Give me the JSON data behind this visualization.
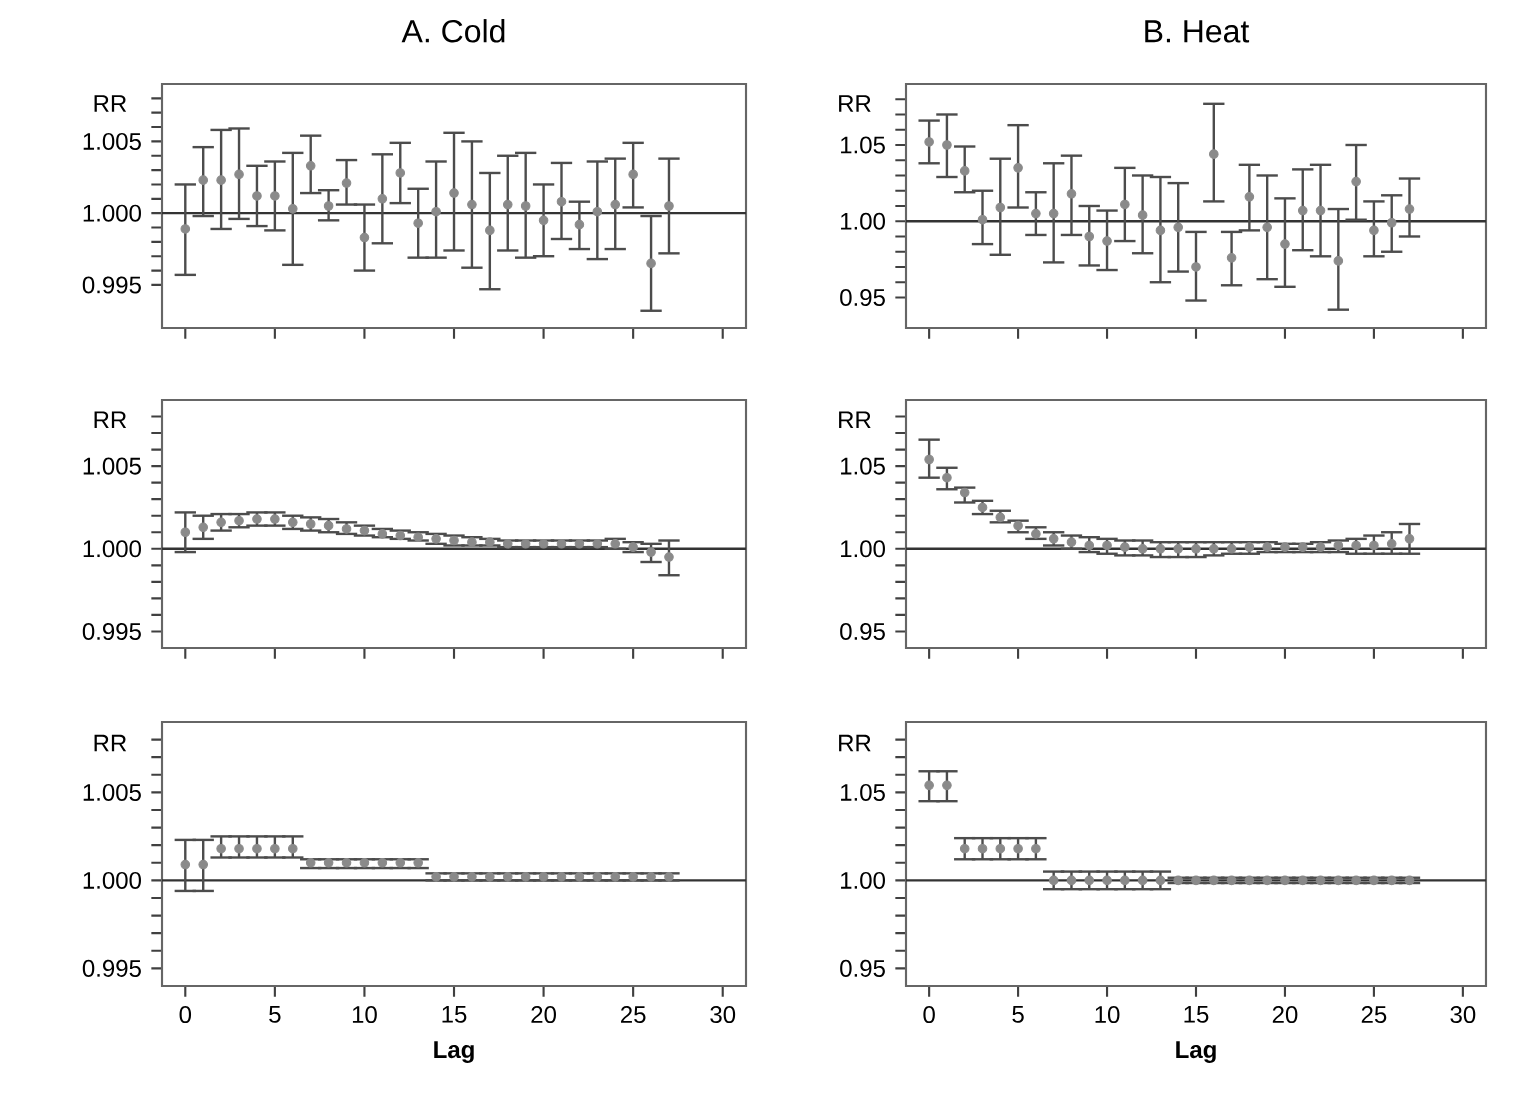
{
  "chart_data": [
    {
      "type": "scatter",
      "title": "A. Cold",
      "ylabel": "RR",
      "color": "#8a8a8a",
      "tick_labels": "y",
      "xlim": [
        -1.3,
        31.3
      ],
      "xticks": [
        0,
        5,
        10,
        15,
        20,
        25,
        30
      ],
      "ylim": [
        0.992,
        1.009
      ],
      "yticks": [
        0.995,
        {
          "value": 0.996,
          "label": null
        },
        {
          "value": 0.997,
          "label": null
        },
        {
          "value": 0.998,
          "label": null
        },
        {
          "value": 0.999,
          "label": null
        },
        {
          "value": 1.0,
          "label": "1.000"
        },
        {
          "value": 1.001,
          "label": null
        },
        {
          "value": 1.002,
          "label": null
        },
        {
          "value": 1.003,
          "label": null
        },
        {
          "value": 1.004,
          "label": null
        },
        1.005,
        {
          "value": 1.006,
          "label": null
        },
        {
          "value": 1.007,
          "label": null
        },
        {
          "value": 1.008,
          "label": null
        }
      ],
      "ref_lines": [
        {
          "axis": "y",
          "value": 1.0
        }
      ],
      "x": [
        0,
        1,
        2,
        3,
        4,
        5,
        6,
        7,
        8,
        9,
        10,
        11,
        12,
        13,
        14,
        15,
        16,
        17,
        18,
        19,
        20,
        21,
        22,
        23,
        24,
        25,
        26,
        27
      ],
      "values": [
        0.9989,
        1.0023,
        1.0023,
        1.0027,
        1.0012,
        1.0012,
        1.0003,
        1.0033,
        1.0005,
        1.0021,
        0.9983,
        1.001,
        1.0028,
        0.9993,
        1.0001,
        1.0014,
        1.0006,
        0.9988,
        1.0006,
        1.0005,
        0.9995,
        1.0008,
        0.9992,
        1.0001,
        1.0006,
        1.0027,
        0.9965,
        1.0005
      ],
      "errors": [
        [
          0.9957,
          1.002
        ],
        [
          0.9998,
          1.0046
        ],
        [
          0.9989,
          1.0058
        ],
        [
          0.9996,
          1.0059
        ],
        [
          0.9991,
          1.0033
        ],
        [
          0.9988,
          1.0036
        ],
        [
          0.9964,
          1.0042
        ],
        [
          1.0014,
          1.0054
        ],
        [
          0.9995,
          1.0016
        ],
        [
          1.0006,
          1.0037
        ],
        [
          0.996,
          1.0006
        ],
        [
          0.9979,
          1.0041
        ],
        [
          1.0007,
          1.0049
        ],
        [
          0.9969,
          1.0017
        ],
        [
          0.9969,
          1.0036
        ],
        [
          0.9974,
          1.0056
        ],
        [
          0.9962,
          1.005
        ],
        [
          0.9947,
          1.0028
        ],
        [
          0.9974,
          1.004
        ],
        [
          0.9969,
          1.0042
        ],
        [
          0.997,
          1.002
        ],
        [
          0.9982,
          1.0035
        ],
        [
          0.9975,
          1.0008
        ],
        [
          0.9968,
          1.0036
        ],
        [
          0.9975,
          1.0038
        ],
        [
          1.0004,
          1.0049
        ],
        [
          0.9932,
          0.9998
        ],
        [
          0.9972,
          1.0038
        ]
      ]
    },
    {
      "type": "scatter",
      "title": "B. Heat",
      "ylabel": "RR",
      "color": "#8a8a8a",
      "tick_labels": "y",
      "xlim": [
        -1.3,
        31.3
      ],
      "xticks": [
        0,
        5,
        10,
        15,
        20,
        25,
        30
      ],
      "ylim": [
        0.93,
        1.09
      ],
      "yticks": [
        0.95,
        {
          "value": 0.96,
          "label": null
        },
        {
          "value": 0.97,
          "label": null
        },
        {
          "value": 0.98,
          "label": null
        },
        {
          "value": 0.99,
          "label": null
        },
        {
          "value": 1.0,
          "label": "1.00"
        },
        {
          "value": 1.01,
          "label": null
        },
        {
          "value": 1.02,
          "label": null
        },
        {
          "value": 1.03,
          "label": null
        },
        {
          "value": 1.04,
          "label": null
        },
        1.05,
        {
          "value": 1.06,
          "label": null
        },
        {
          "value": 1.07,
          "label": null
        },
        {
          "value": 1.08,
          "label": null
        }
      ],
      "ref_lines": [
        {
          "axis": "y",
          "value": 1.0
        }
      ],
      "x": [
        0,
        1,
        2,
        3,
        4,
        5,
        6,
        7,
        8,
        9,
        10,
        11,
        12,
        13,
        14,
        15,
        16,
        17,
        18,
        19,
        20,
        21,
        22,
        23,
        24,
        25,
        26,
        27
      ],
      "values": [
        1.052,
        1.05,
        1.033,
        1.001,
        1.009,
        1.035,
        1.005,
        1.005,
        1.018,
        0.99,
        0.987,
        1.011,
        1.004,
        0.994,
        0.996,
        0.97,
        1.044,
        0.976,
        1.016,
        0.996,
        0.985,
        1.007,
        1.007,
        0.974,
        1.026,
        0.994,
        0.999,
        1.008
      ],
      "errors": [
        [
          1.038,
          1.066
        ],
        [
          1.029,
          1.07
        ],
        [
          1.019,
          1.049
        ],
        [
          0.985,
          1.02
        ],
        [
          0.978,
          1.041
        ],
        [
          1.009,
          1.063
        ],
        [
          0.991,
          1.019
        ],
        [
          0.973,
          1.038
        ],
        [
          0.991,
          1.043
        ],
        [
          0.971,
          1.01
        ],
        [
          0.968,
          1.007
        ],
        [
          0.987,
          1.035
        ],
        [
          0.979,
          1.03
        ],
        [
          0.96,
          1.029
        ],
        [
          0.967,
          1.025
        ],
        [
          0.948,
          0.993
        ],
        [
          1.013,
          1.077
        ],
        [
          0.958,
          0.993
        ],
        [
          0.994,
          1.037
        ],
        [
          0.962,
          1.03
        ],
        [
          0.957,
          1.015
        ],
        [
          0.981,
          1.034
        ],
        [
          0.977,
          1.037
        ],
        [
          0.942,
          1.008
        ],
        [
          1.001,
          1.05
        ],
        [
          0.977,
          1.013
        ],
        [
          0.98,
          1.017
        ],
        [
          0.99,
          1.028
        ]
      ]
    },
    {
      "type": "scatter",
      "ylabel": "RR",
      "color": "#8a8a8a",
      "tick_labels": "y",
      "xlim": [
        -1.3,
        31.3
      ],
      "xticks": [
        0,
        5,
        10,
        15,
        20,
        25,
        30
      ],
      "ylim": [
        0.994,
        1.009
      ],
      "yticks": [
        0.995,
        {
          "value": 0.996,
          "label": null
        },
        {
          "value": 0.997,
          "label": null
        },
        {
          "value": 0.998,
          "label": null
        },
        {
          "value": 0.999,
          "label": null
        },
        {
          "value": 1.0,
          "label": "1.000"
        },
        {
          "value": 1.001,
          "label": null
        },
        {
          "value": 1.002,
          "label": null
        },
        {
          "value": 1.003,
          "label": null
        },
        {
          "value": 1.004,
          "label": null
        },
        1.005,
        {
          "value": 1.006,
          "label": null
        },
        {
          "value": 1.007,
          "label": null
        },
        {
          "value": 1.008,
          "label": null
        }
      ],
      "ref_lines": [
        {
          "axis": "y",
          "value": 1.0
        }
      ],
      "x": [
        0,
        1,
        2,
        3,
        4,
        5,
        6,
        7,
        8,
        9,
        10,
        11,
        12,
        13,
        14,
        15,
        16,
        17,
        18,
        19,
        20,
        21,
        22,
        23,
        24,
        25,
        26,
        27
      ],
      "values": [
        1.001,
        1.0013,
        1.0016,
        1.0017,
        1.0018,
        1.0018,
        1.0016,
        1.0015,
        1.0014,
        1.0012,
        1.0011,
        1.0009,
        1.0008,
        1.0007,
        1.0006,
        1.0005,
        1.0004,
        1.0004,
        1.0003,
        1.0003,
        1.0003,
        1.0003,
        1.0003,
        1.0003,
        1.0003,
        1.0001,
        0.9998,
        0.9995
      ],
      "errors": [
        [
          0.9998,
          1.0022
        ],
        [
          1.0006,
          1.002
        ],
        [
          1.0011,
          1.0021
        ],
        [
          1.0013,
          1.0021
        ],
        [
          1.0014,
          1.0022
        ],
        [
          1.0014,
          1.0022
        ],
        [
          1.0012,
          1.002
        ],
        [
          1.0011,
          1.0019
        ],
        [
          1.001,
          1.0018
        ],
        [
          1.0009,
          1.0016
        ],
        [
          1.0008,
          1.0014
        ],
        [
          1.0007,
          1.0012
        ],
        [
          1.0006,
          1.0011
        ],
        [
          1.0005,
          1.001
        ],
        [
          1.0003,
          1.0009
        ],
        [
          1.0002,
          1.0008
        ],
        [
          1.0002,
          1.0007
        ],
        [
          1.0002,
          1.0006
        ],
        [
          1.0001,
          1.0005
        ],
        [
          1.0001,
          1.0005
        ],
        [
          1.0001,
          1.0005
        ],
        [
          1.0001,
          1.0005
        ],
        [
          1.0001,
          1.0005
        ],
        [
          1.0001,
          1.0005
        ],
        [
          1.0,
          1.0006
        ],
        [
          0.9998,
          1.0004
        ],
        [
          0.9992,
          1.0003
        ],
        [
          0.9984,
          1.0005
        ]
      ]
    },
    {
      "type": "scatter",
      "ylabel": "RR",
      "color": "#8a8a8a",
      "tick_labels": "y",
      "xlim": [
        -1.3,
        31.3
      ],
      "xticks": [
        0,
        5,
        10,
        15,
        20,
        25,
        30
      ],
      "ylim": [
        0.94,
        1.09
      ],
      "yticks": [
        0.95,
        {
          "value": 0.96,
          "label": null
        },
        {
          "value": 0.97,
          "label": null
        },
        {
          "value": 0.98,
          "label": null
        },
        {
          "value": 0.99,
          "label": null
        },
        {
          "value": 1.0,
          "label": "1.00"
        },
        {
          "value": 1.01,
          "label": null
        },
        {
          "value": 1.02,
          "label": null
        },
        {
          "value": 1.03,
          "label": null
        },
        {
          "value": 1.04,
          "label": null
        },
        1.05,
        {
          "value": 1.06,
          "label": null
        },
        {
          "value": 1.07,
          "label": null
        },
        {
          "value": 1.08,
          "label": null
        }
      ],
      "ref_lines": [
        {
          "axis": "y",
          "value": 1.0
        }
      ],
      "x": [
        0,
        1,
        2,
        3,
        4,
        5,
        6,
        7,
        8,
        9,
        10,
        11,
        12,
        13,
        14,
        15,
        16,
        17,
        18,
        19,
        20,
        21,
        22,
        23,
        24,
        25,
        26,
        27
      ],
      "values": [
        1.054,
        1.043,
        1.034,
        1.025,
        1.019,
        1.014,
        1.009,
        1.006,
        1.004,
        1.002,
        1.002,
        1.001,
        1.0,
        1.0,
        1.0,
        1.0,
        1.0,
        1.0,
        1.001,
        1.001,
        1.001,
        1.001,
        1.001,
        1.002,
        1.002,
        1.002,
        1.003,
        1.006
      ],
      "errors": [
        [
          1.043,
          1.066
        ],
        [
          1.036,
          1.049
        ],
        [
          1.028,
          1.037
        ],
        [
          1.021,
          1.029
        ],
        [
          1.016,
          1.023
        ],
        [
          1.01,
          1.017
        ],
        [
          1.006,
          1.013
        ],
        [
          1.002,
          1.01
        ],
        [
          1.0,
          1.008
        ],
        [
          0.998,
          1.007
        ],
        [
          0.997,
          1.006
        ],
        [
          0.996,
          1.005
        ],
        [
          0.996,
          1.005
        ],
        [
          0.995,
          1.004
        ],
        [
          0.995,
          1.004
        ],
        [
          0.995,
          1.004
        ],
        [
          0.996,
          1.004
        ],
        [
          0.997,
          1.004
        ],
        [
          0.997,
          1.004
        ],
        [
          0.998,
          1.004
        ],
        [
          0.998,
          1.003
        ],
        [
          0.998,
          1.003
        ],
        [
          0.998,
          1.004
        ],
        [
          0.998,
          1.005
        ],
        [
          0.997,
          1.006
        ],
        [
          0.997,
          1.008
        ],
        [
          0.997,
          1.01
        ],
        [
          0.997,
          1.015
        ]
      ]
    },
    {
      "type": "scatter",
      "xlabel": "Lag",
      "ylabel": "RR",
      "color": "#8a8a8a",
      "xlim": [
        -1.3,
        31.3
      ],
      "xticks": [
        0,
        5,
        10,
        15,
        20,
        25,
        30
      ],
      "ylim": [
        0.994,
        1.009
      ],
      "yticks": [
        0.995,
        {
          "value": 0.996,
          "label": null
        },
        {
          "value": 0.997,
          "label": null
        },
        {
          "value": 0.998,
          "label": null
        },
        {
          "value": 0.999,
          "label": null
        },
        {
          "value": 1.0,
          "label": "1.000"
        },
        {
          "value": 1.001,
          "label": null
        },
        {
          "value": 1.002,
          "label": null
        },
        {
          "value": 1.003,
          "label": null
        },
        {
          "value": 1.004,
          "label": null
        },
        1.005,
        {
          "value": 1.006,
          "label": null
        },
        {
          "value": 1.007,
          "label": null
        },
        {
          "value": 1.008,
          "label": null
        }
      ],
      "ref_lines": [
        {
          "axis": "y",
          "value": 1.0
        }
      ],
      "x": [
        0,
        1,
        2,
        3,
        4,
        5,
        6,
        7,
        8,
        9,
        10,
        11,
        12,
        13,
        14,
        15,
        16,
        17,
        18,
        19,
        20,
        21,
        22,
        23,
        24,
        25,
        26,
        27
      ],
      "values": [
        1.0009,
        1.0009,
        1.0018,
        1.0018,
        1.0018,
        1.0018,
        1.0018,
        1.001,
        1.001,
        1.001,
        1.001,
        1.001,
        1.001,
        1.001,
        1.0002,
        1.0002,
        1.0002,
        1.0002,
        1.0002,
        1.0002,
        1.0002,
        1.0002,
        1.0002,
        1.0002,
        1.0002,
        1.0002,
        1.0002,
        1.0002
      ],
      "errors": [
        [
          0.9994,
          1.0023
        ],
        [
          0.9994,
          1.0023
        ],
        [
          1.0013,
          1.0025
        ],
        [
          1.0013,
          1.0025
        ],
        [
          1.0013,
          1.0025
        ],
        [
          1.0013,
          1.0025
        ],
        [
          1.0013,
          1.0025
        ],
        [
          1.0007,
          1.0012
        ],
        [
          1.0007,
          1.0012
        ],
        [
          1.0007,
          1.0012
        ],
        [
          1.0007,
          1.0012
        ],
        [
          1.0007,
          1.0012
        ],
        [
          1.0007,
          1.0012
        ],
        [
          1.0007,
          1.0012
        ],
        [
          1.0,
          1.0004
        ],
        [
          1.0,
          1.0004
        ],
        [
          1.0,
          1.0004
        ],
        [
          1.0,
          1.0004
        ],
        [
          1.0,
          1.0004
        ],
        [
          1.0,
          1.0004
        ],
        [
          1.0,
          1.0004
        ],
        [
          1.0,
          1.0004
        ],
        [
          1.0,
          1.0004
        ],
        [
          1.0,
          1.0004
        ],
        [
          1.0,
          1.0004
        ],
        [
          1.0,
          1.0004
        ],
        [
          1.0,
          1.0004
        ],
        [
          1.0,
          1.0004
        ]
      ]
    },
    {
      "type": "scatter",
      "xlabel": "Lag",
      "ylabel": "RR",
      "color": "#8a8a8a",
      "xlim": [
        -1.3,
        31.3
      ],
      "xticks": [
        0,
        5,
        10,
        15,
        20,
        25,
        30
      ],
      "ylim": [
        0.94,
        1.09
      ],
      "yticks": [
        0.95,
        {
          "value": 0.96,
          "label": null
        },
        {
          "value": 0.97,
          "label": null
        },
        {
          "value": 0.98,
          "label": null
        },
        {
          "value": 0.99,
          "label": null
        },
        {
          "value": 1.0,
          "label": "1.00"
        },
        {
          "value": 1.01,
          "label": null
        },
        {
          "value": 1.02,
          "label": null
        },
        {
          "value": 1.03,
          "label": null
        },
        {
          "value": 1.04,
          "label": null
        },
        1.05,
        {
          "value": 1.06,
          "label": null
        },
        {
          "value": 1.07,
          "label": null
        },
        {
          "value": 1.08,
          "label": null
        }
      ],
      "ref_lines": [
        {
          "axis": "y",
          "value": 1.0
        }
      ],
      "x": [
        0,
        1,
        2,
        3,
        4,
        5,
        6,
        7,
        8,
        9,
        10,
        11,
        12,
        13,
        14,
        15,
        16,
        17,
        18,
        19,
        20,
        21,
        22,
        23,
        24,
        25,
        26,
        27
      ],
      "values": [
        1.054,
        1.054,
        1.018,
        1.018,
        1.018,
        1.018,
        1.018,
        1.0,
        1.0,
        1.0,
        1.0,
        1.0,
        1.0,
        1.0,
        1.0,
        1.0,
        1.0,
        1.0,
        1.0,
        1.0,
        1.0,
        1.0,
        1.0,
        1.0,
        1.0,
        1.0,
        1.0,
        1.0
      ],
      "errors": [
        [
          1.045,
          1.062
        ],
        [
          1.045,
          1.062
        ],
        [
          1.012,
          1.024
        ],
        [
          1.012,
          1.024
        ],
        [
          1.012,
          1.024
        ],
        [
          1.012,
          1.024
        ],
        [
          1.012,
          1.024
        ],
        [
          0.995,
          1.005
        ],
        [
          0.995,
          1.005
        ],
        [
          0.995,
          1.005
        ],
        [
          0.995,
          1.005
        ],
        [
          0.995,
          1.005
        ],
        [
          0.995,
          1.005
        ],
        [
          0.995,
          1.005
        ],
        [
          0.9985,
          1.0015
        ],
        [
          0.9985,
          1.0015
        ],
        [
          0.9985,
          1.0015
        ],
        [
          0.9985,
          1.0015
        ],
        [
          0.9985,
          1.0015
        ],
        [
          0.9985,
          1.0015
        ],
        [
          0.9985,
          1.0015
        ],
        [
          0.9985,
          1.0015
        ],
        [
          0.9985,
          1.0015
        ],
        [
          0.9985,
          1.0015
        ],
        [
          0.9985,
          1.0015
        ],
        [
          0.9985,
          1.0015
        ],
        [
          0.9985,
          1.0015
        ],
        [
          0.9985,
          1.0015
        ]
      ]
    }
  ]
}
